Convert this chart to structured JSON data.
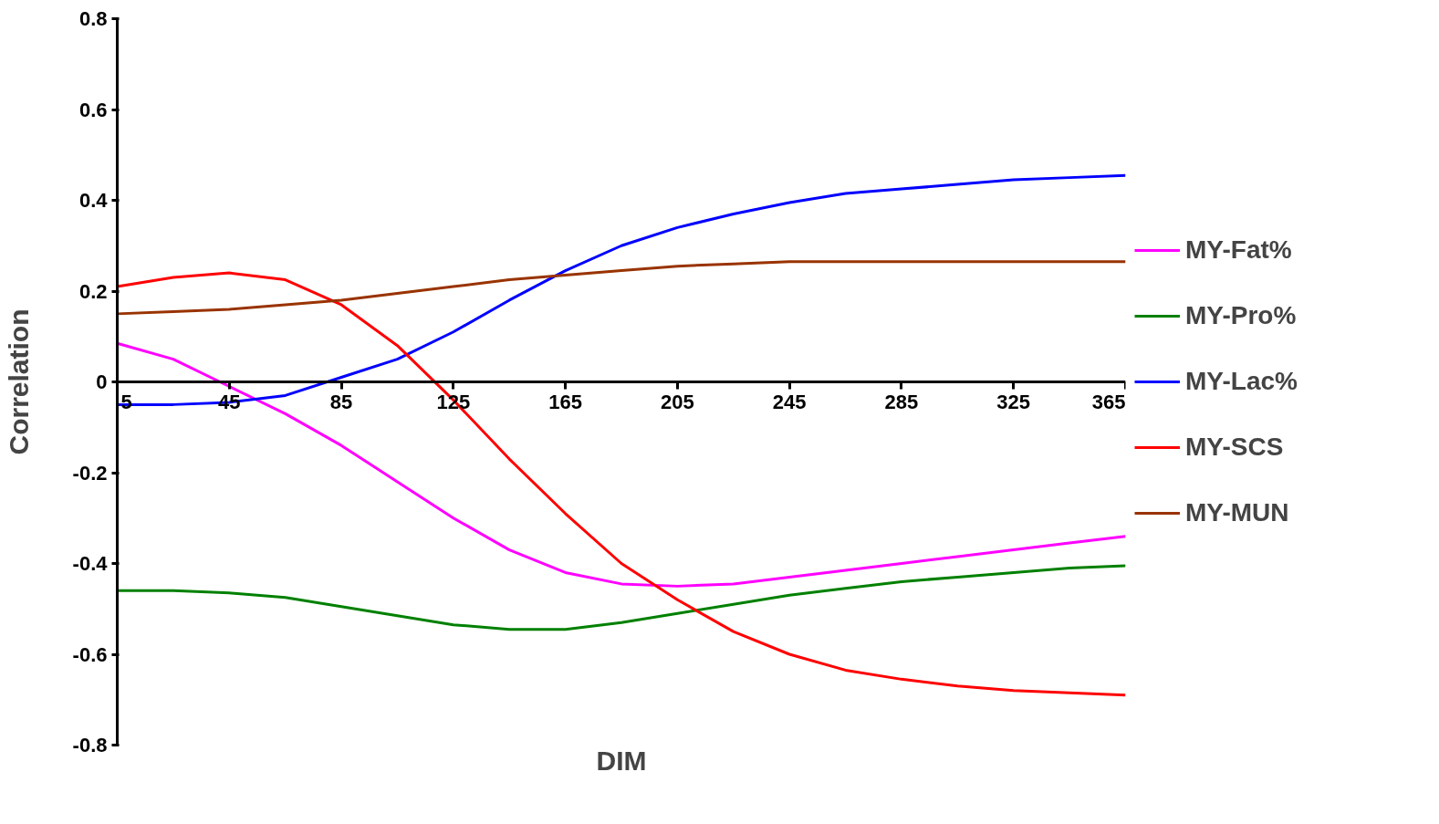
{
  "chart_data": {
    "type": "line",
    "xlabel": "DIM",
    "ylabel": "Correlation",
    "x": [
      5,
      25,
      45,
      65,
      85,
      105,
      125,
      145,
      165,
      185,
      205,
      225,
      245,
      265,
      285,
      305,
      325,
      345,
      365
    ],
    "series": [
      {
        "name": "MY-Fat%",
        "color": "#ff00ff",
        "values": [
          0.085,
          0.05,
          -0.01,
          -0.07,
          -0.14,
          -0.22,
          -0.3,
          -0.37,
          -0.42,
          -0.445,
          -0.45,
          -0.445,
          -0.43,
          -0.415,
          -0.4,
          -0.385,
          -0.37,
          -0.355,
          -0.34
        ]
      },
      {
        "name": "MY-Pro%",
        "color": "#008000",
        "values": [
          -0.46,
          -0.46,
          -0.465,
          -0.475,
          -0.495,
          -0.515,
          -0.535,
          -0.545,
          -0.545,
          -0.53,
          -0.51,
          -0.49,
          -0.47,
          -0.455,
          -0.44,
          -0.43,
          -0.42,
          -0.41,
          -0.405
        ]
      },
      {
        "name": "MY-Lac%",
        "color": "#0000ff",
        "values": [
          -0.05,
          -0.05,
          -0.045,
          -0.03,
          0.01,
          0.05,
          0.11,
          0.18,
          0.245,
          0.3,
          0.34,
          0.37,
          0.395,
          0.415,
          0.425,
          0.435,
          0.445,
          0.45,
          0.455
        ]
      },
      {
        "name": "MY-SCS",
        "color": "#ff0000",
        "values": [
          0.21,
          0.23,
          0.24,
          0.225,
          0.17,
          0.08,
          -0.04,
          -0.17,
          -0.29,
          -0.4,
          -0.48,
          -0.55,
          -0.6,
          -0.635,
          -0.655,
          -0.67,
          -0.68,
          -0.685,
          -0.69
        ]
      },
      {
        "name": "MY-MUN",
        "color": "#993300",
        "values": [
          0.15,
          0.155,
          0.16,
          0.17,
          0.18,
          0.195,
          0.21,
          0.225,
          0.235,
          0.245,
          0.255,
          0.26,
          0.265,
          0.265,
          0.265,
          0.265,
          0.265,
          0.265,
          0.265
        ]
      }
    ],
    "xlim": [
      5,
      365
    ],
    "xticks": [
      5,
      45,
      85,
      125,
      165,
      205,
      245,
      285,
      325,
      365
    ],
    "ylim": [
      -0.8,
      0.8
    ],
    "yticks": [
      -0.8,
      -0.6,
      -0.4,
      -0.2,
      0,
      0.2,
      0.4,
      0.6,
      0.8
    ],
    "grid": false,
    "legend": "right",
    "marker": "none",
    "line_style": "solid"
  }
}
